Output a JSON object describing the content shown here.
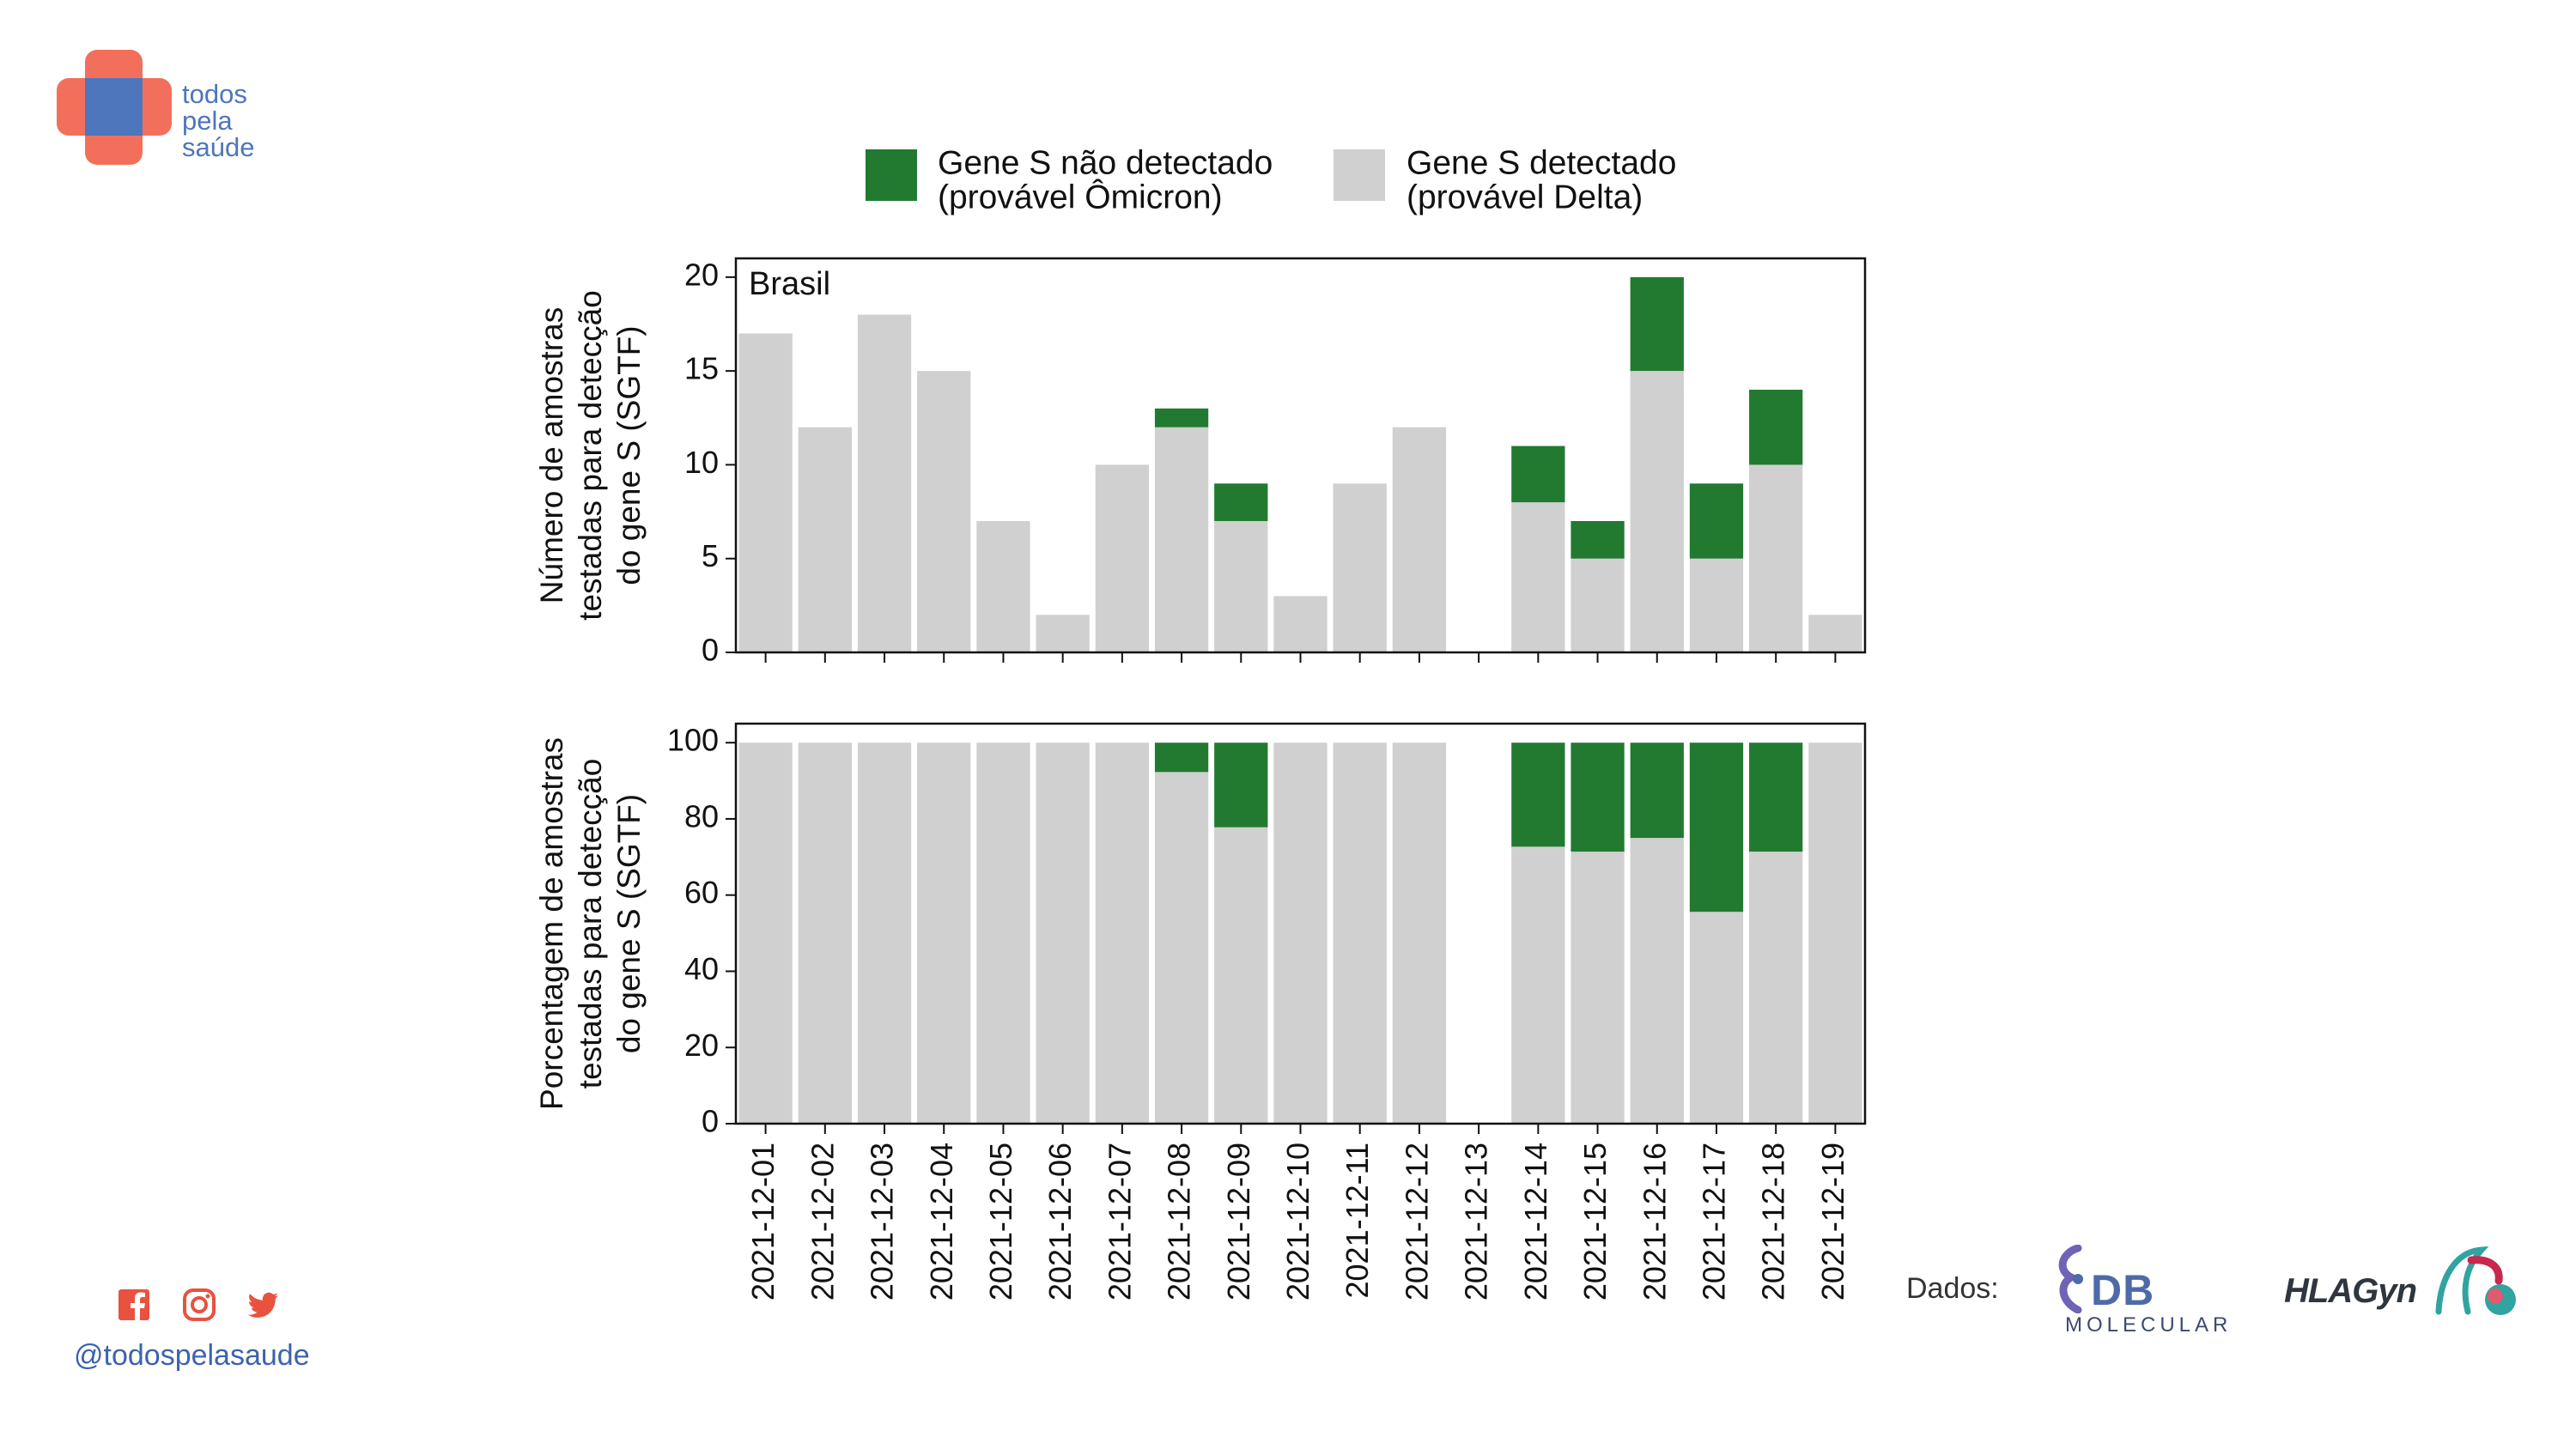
{
  "brand": {
    "lines": [
      "todos",
      "pela",
      "saúde"
    ],
    "colors": {
      "primary": "#f2705b",
      "secondary": "#4d76bd"
    }
  },
  "social": {
    "icons": [
      "facebook-icon",
      "instagram-icon",
      "twitter-icon"
    ],
    "handle": "@todospelasaude",
    "color": "#e8523f"
  },
  "sources": {
    "label": "Dados:",
    "db_name": "DB",
    "db_sub": "MOLECULAR",
    "hla_name": "HLAGyn"
  },
  "chart_data": [
    {
      "type": "bar",
      "stacked": true,
      "panel_label": "Brasil",
      "ylabel": [
        "Número de amostras",
        "testadas para detecção",
        "do gene S (SGTF)"
      ],
      "ylim": [
        0,
        21
      ],
      "yticks": [
        0,
        5,
        10,
        15,
        20
      ],
      "x_tick_labels_shown": false,
      "categories": [
        "2021-12-01",
        "2021-12-02",
        "2021-12-03",
        "2021-12-04",
        "2021-12-05",
        "2021-12-06",
        "2021-12-07",
        "2021-12-08",
        "2021-12-09",
        "2021-12-10",
        "2021-12-11",
        "2021-12-12",
        "2021-12-13",
        "2021-12-14",
        "2021-12-15",
        "2021-12-16",
        "2021-12-17",
        "2021-12-18",
        "2021-12-19"
      ],
      "series": [
        {
          "name": [
            "Gene S detectado",
            "(provável Delta)"
          ],
          "color": "#d0d0d0",
          "values": [
            17,
            12,
            18,
            15,
            7,
            2,
            10,
            12,
            7,
            3,
            9,
            12,
            0,
            8,
            5,
            15,
            5,
            10,
            2
          ]
        },
        {
          "name": [
            "Gene S não detectado",
            "(provável Ômicron)"
          ],
          "color": "#217a30",
          "values": [
            0,
            0,
            0,
            0,
            0,
            0,
            0,
            1,
            2,
            0,
            0,
            0,
            0,
            3,
            2,
            5,
            4,
            4,
            0
          ]
        }
      ]
    },
    {
      "type": "bar",
      "stacked": true,
      "ylabel": [
        "Porcentagem de amostras",
        "testadas para detecção",
        "do gene S (SGTF)"
      ],
      "ylim": [
        0,
        105
      ],
      "yticks": [
        0,
        20,
        40,
        60,
        80,
        100
      ],
      "x_tick_labels_shown": true,
      "categories": [
        "2021-12-01",
        "2021-12-02",
        "2021-12-03",
        "2021-12-04",
        "2021-12-05",
        "2021-12-06",
        "2021-12-07",
        "2021-12-08",
        "2021-12-09",
        "2021-12-10",
        "2021-12-11",
        "2021-12-12",
        "2021-12-13",
        "2021-12-14",
        "2021-12-15",
        "2021-12-16",
        "2021-12-17",
        "2021-12-18",
        "2021-12-19"
      ],
      "series": [
        {
          "name": [
            "Gene S detectado",
            "(provável Delta)"
          ],
          "color": "#d0d0d0",
          "values": [
            100,
            100,
            100,
            100,
            100,
            100,
            100,
            92.3,
            77.8,
            100,
            100,
            100,
            0,
            72.7,
            71.4,
            75,
            55.6,
            71.4,
            100
          ]
        },
        {
          "name": [
            "Gene S não detectado",
            "(provável Ômicron)"
          ],
          "color": "#217a30",
          "values": [
            0,
            0,
            0,
            0,
            0,
            0,
            0,
            7.7,
            22.2,
            0,
            0,
            0,
            0,
            27.3,
            28.6,
            25,
            44.4,
            28.6,
            0
          ]
        }
      ]
    }
  ]
}
